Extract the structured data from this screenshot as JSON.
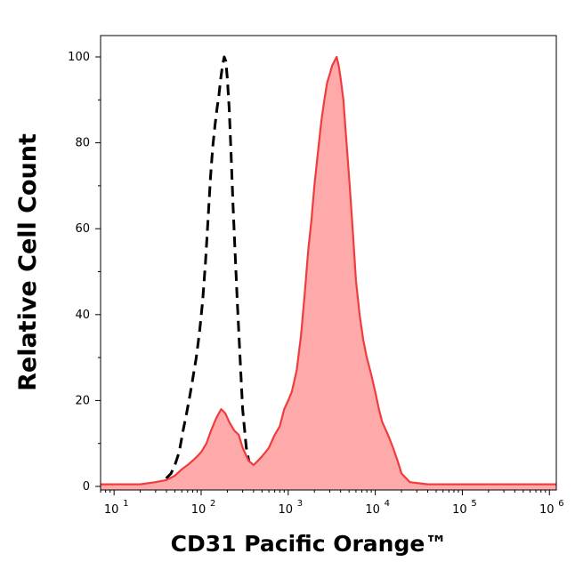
{
  "chart_data": {
    "type": "area",
    "xlabel": "CD31 Pacific Orange™",
    "ylabel": "Relative Cell Count",
    "x_scale": "log",
    "xlim": [
      7,
      1200000
    ],
    "ylim": [
      0,
      105
    ],
    "x_ticks": [
      {
        "value": 10,
        "base": "10",
        "exp": "1"
      },
      {
        "value": 100,
        "base": "10",
        "exp": "2"
      },
      {
        "value": 1000,
        "base": "10",
        "exp": "3"
      },
      {
        "value": 10000,
        "base": "10",
        "exp": "4"
      },
      {
        "value": 100000,
        "base": "10",
        "exp": "5"
      },
      {
        "value": 1000000,
        "base": "10",
        "exp": "6"
      }
    ],
    "y_ticks": [
      0,
      20,
      40,
      60,
      80,
      100
    ],
    "grid": false,
    "series": [
      {
        "style": "dashed-black",
        "color": "#000000",
        "points": [
          [
            7,
            0
          ],
          [
            25,
            0
          ],
          [
            32,
            0.5
          ],
          [
            38,
            1.5
          ],
          [
            45,
            3
          ],
          [
            50,
            5
          ],
          [
            56,
            8
          ],
          [
            62,
            13
          ],
          [
            68,
            17
          ],
          [
            74,
            21
          ],
          [
            80,
            25
          ],
          [
            88,
            30
          ],
          [
            96,
            36
          ],
          [
            104,
            43
          ],
          [
            112,
            52
          ],
          [
            120,
            62
          ],
          [
            128,
            72
          ],
          [
            136,
            79
          ],
          [
            144,
            84
          ],
          [
            152,
            88
          ],
          [
            160,
            91
          ],
          [
            168,
            95
          ],
          [
            176,
            98
          ],
          [
            184,
            100
          ],
          [
            192,
            99
          ],
          [
            200,
            95
          ],
          [
            210,
            88
          ],
          [
            220,
            78
          ],
          [
            232,
            66
          ],
          [
            245,
            55
          ],
          [
            260,
            43
          ],
          [
            280,
            30
          ],
          [
            300,
            18
          ],
          [
            330,
            9
          ],
          [
            360,
            5
          ],
          [
            400,
            3
          ],
          [
            450,
            2
          ],
          [
            500,
            2
          ],
          [
            600,
            1.5
          ],
          [
            700,
            1
          ],
          [
            900,
            0.5
          ],
          [
            1500,
            0
          ],
          [
            5000,
            0
          ],
          [
            1200000,
            0
          ]
        ]
      },
      {
        "style": "filled-red",
        "color": "#f03c3c",
        "fill": "#ffaaaa",
        "points": [
          [
            7,
            0.5
          ],
          [
            20,
            0.5
          ],
          [
            30,
            1
          ],
          [
            40,
            1.5
          ],
          [
            50,
            2.5
          ],
          [
            60,
            4
          ],
          [
            70,
            5
          ],
          [
            80,
            6
          ],
          [
            90,
            7
          ],
          [
            100,
            8
          ],
          [
            115,
            10
          ],
          [
            130,
            13
          ],
          [
            150,
            16
          ],
          [
            170,
            18
          ],
          [
            190,
            17
          ],
          [
            210,
            15
          ],
          [
            240,
            13
          ],
          [
            270,
            12
          ],
          [
            300,
            9
          ],
          [
            350,
            6
          ],
          [
            400,
            5
          ],
          [
            450,
            6
          ],
          [
            500,
            7
          ],
          [
            550,
            8
          ],
          [
            600,
            9
          ],
          [
            700,
            12
          ],
          [
            800,
            14
          ],
          [
            900,
            18
          ],
          [
            1000,
            20
          ],
          [
            1100,
            22
          ],
          [
            1250,
            27
          ],
          [
            1400,
            35
          ],
          [
            1550,
            45
          ],
          [
            1700,
            55
          ],
          [
            1850,
            62
          ],
          [
            2000,
            70
          ],
          [
            2200,
            78
          ],
          [
            2400,
            85
          ],
          [
            2600,
            90
          ],
          [
            2800,
            94
          ],
          [
            3000,
            96
          ],
          [
            3200,
            98
          ],
          [
            3400,
            99
          ],
          [
            3600,
            100
          ],
          [
            3800,
            98
          ],
          [
            4000,
            95
          ],
          [
            4300,
            90
          ],
          [
            4600,
            82
          ],
          [
            5000,
            72
          ],
          [
            5500,
            60
          ],
          [
            6000,
            48
          ],
          [
            6600,
            40
          ],
          [
            7300,
            34
          ],
          [
            8000,
            30
          ],
          [
            9000,
            26
          ],
          [
            10000,
            22
          ],
          [
            11000,
            18
          ],
          [
            12000,
            15
          ],
          [
            14000,
            12
          ],
          [
            16000,
            9
          ],
          [
            18000,
            6
          ],
          [
            20000,
            3
          ],
          [
            25000,
            1
          ],
          [
            40000,
            0.5
          ],
          [
            80000,
            0.5
          ],
          [
            200000,
            0.5
          ],
          [
            1200000,
            0.5
          ]
        ]
      }
    ]
  }
}
